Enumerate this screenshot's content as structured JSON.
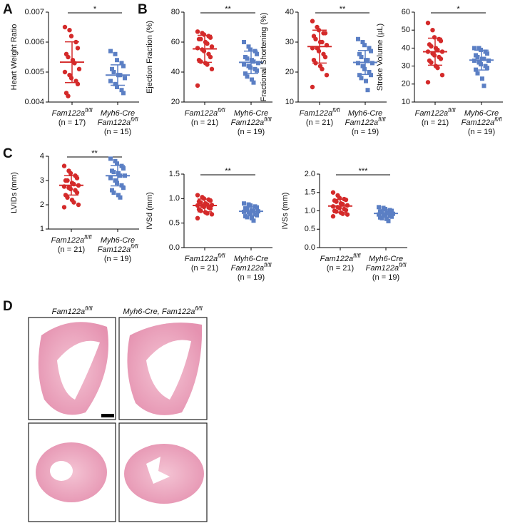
{
  "panel_labels": [
    "A",
    "B",
    "C",
    "D"
  ],
  "chart_data": [
    {
      "type": "dot",
      "ylabel": "Heart Weight Ratio",
      "ylim": [
        0.004,
        0.007
      ],
      "yticks": [
        0.004,
        0.005,
        0.006,
        0.007
      ],
      "significance": "*",
      "series": [
        {
          "label_lines": [
            {
              "text": "Fam122a",
              "sup": "fl/fl"
            }
          ],
          "n_label": "(n = 17)",
          "color": "#d42a2a",
          "marker": "circle",
          "mean": 0.00533,
          "sd": 0.00068,
          "values": [
            0.0065,
            0.0064,
            0.0062,
            0.006,
            0.0058,
            0.0056,
            0.0055,
            0.0054,
            0.0053,
            0.0051,
            0.005,
            0.0049,
            0.0048,
            0.0047,
            0.0046,
            0.0043,
            0.0042
          ]
        },
        {
          "label_lines": [
            {
              "text": "Myh6-Cre"
            },
            {
              "text": "Fam122a",
              "sup": "fl/fl"
            }
          ],
          "n_label": "(n = 15)",
          "color": "#5b7fc4",
          "marker": "square",
          "mean": 0.0049,
          "sd": 0.00034,
          "values": [
            0.0057,
            0.0056,
            0.0054,
            0.0053,
            0.0052,
            0.0051,
            0.005,
            0.0049,
            0.0049,
            0.0048,
            0.0047,
            0.0046,
            0.0045,
            0.0044,
            0.0043
          ]
        }
      ]
    },
    {
      "type": "dot",
      "ylabel": "Ejection Fraction (%)",
      "ylim": [
        20,
        80
      ],
      "yticks": [
        20,
        40,
        60,
        80
      ],
      "significance": "**",
      "series": [
        {
          "label_lines": [
            {
              "text": "Fam122a",
              "sup": "fl/fl"
            }
          ],
          "n_label": "(n = 21)",
          "color": "#d42a2a",
          "marker": "circle",
          "mean": 55.5,
          "sd": 9,
          "values": [
            67,
            66,
            65,
            64,
            63,
            62,
            62,
            60,
            59,
            57,
            56,
            55,
            54,
            52,
            50,
            48,
            47,
            46,
            45,
            42,
            31
          ]
        },
        {
          "label_lines": [
            {
              "text": "Myh6-Cre"
            },
            {
              "text": "Fam122a",
              "sup": "fl/fl"
            }
          ],
          "n_label": "(n = 19)",
          "color": "#5b7fc4",
          "marker": "square",
          "mean": 46.5,
          "sd": 7.5,
          "values": [
            60,
            57,
            55,
            54,
            52,
            50,
            49,
            48,
            47,
            46,
            45,
            44,
            43,
            42,
            41,
            39,
            37,
            35,
            33
          ]
        }
      ]
    },
    {
      "type": "dot",
      "ylabel": "Fractional Shortening (%)",
      "ylim": [
        10,
        40
      ],
      "yticks": [
        10,
        20,
        30,
        40
      ],
      "significance": "**",
      "series": [
        {
          "label_lines": [
            {
              "text": "Fam122a",
              "sup": "fl/fl"
            }
          ],
          "n_label": "(n = 21)",
          "color": "#d42a2a",
          "marker": "circle",
          "mean": 28.5,
          "sd": 5.5,
          "values": [
            37,
            35,
            34,
            33,
            33,
            32,
            31,
            30,
            30,
            29,
            28,
            28,
            27,
            26,
            25,
            24,
            23,
            22,
            21,
            19,
            15
          ]
        },
        {
          "label_lines": [
            {
              "text": "Myh6-Cre"
            },
            {
              "text": "Fam122a",
              "sup": "fl/fl"
            }
          ],
          "n_label": "(n = 19)",
          "color": "#5b7fc4",
          "marker": "square",
          "mean": 23.2,
          "sd": 4,
          "values": [
            31,
            30,
            29,
            28,
            27,
            26,
            25,
            24,
            24,
            23,
            23,
            22,
            21,
            20,
            19,
            19,
            18,
            17,
            14
          ]
        }
      ]
    },
    {
      "type": "dot",
      "ylabel": "Stroke Volume (µL)",
      "ylim": [
        10,
        60
      ],
      "yticks": [
        10,
        20,
        30,
        40,
        50,
        60
      ],
      "significance": "*",
      "series": [
        {
          "label_lines": [
            {
              "text": "Fam122a",
              "sup": "fl/fl"
            }
          ],
          "n_label": "(n = 21)",
          "color": "#d42a2a",
          "marker": "circle",
          "mean": 38,
          "sd": 7.5,
          "values": [
            54,
            50,
            46,
            45,
            44,
            42,
            41,
            40,
            39,
            38,
            38,
            37,
            36,
            35,
            34,
            33,
            32,
            30,
            29,
            25,
            21
          ]
        },
        {
          "label_lines": [
            {
              "text": "Myh6-Cre"
            },
            {
              "text": "Fam122a",
              "sup": "fl/fl"
            }
          ],
          "n_label": "(n = 19)",
          "color": "#5b7fc4",
          "marker": "square",
          "mean": 33.3,
          "sd": 5.5,
          "values": [
            40,
            40,
            39,
            38,
            37,
            36,
            35,
            34,
            34,
            33,
            33,
            32,
            31,
            30,
            29,
            28,
            26,
            23,
            19
          ]
        }
      ]
    },
    {
      "type": "dot",
      "ylabel": "LVIDs (mm)",
      "ylim": [
        1,
        4
      ],
      "yticks": [
        1,
        2,
        3,
        4
      ],
      "significance": "**",
      "series": [
        {
          "label_lines": [
            {
              "text": "Fam122a",
              "sup": "fl/fl"
            }
          ],
          "n_label": "(n = 21)",
          "color": "#d42a2a",
          "marker": "circle",
          "mean": 2.8,
          "sd": 0.4,
          "values": [
            3.6,
            3.4,
            3.3,
            3.2,
            3.1,
            3.0,
            3.0,
            2.9,
            2.85,
            2.8,
            2.75,
            2.7,
            2.65,
            2.6,
            2.5,
            2.4,
            2.3,
            2.2,
            2.1,
            2.0,
            1.9
          ]
        },
        {
          "label_lines": [
            {
              "text": "Myh6-Cre"
            },
            {
              "text": "Fam122a",
              "sup": "fl/fl"
            }
          ],
          "n_label": "(n = 19)",
          "color": "#5b7fc4",
          "marker": "square",
          "mean": 3.2,
          "sd": 0.42,
          "values": [
            3.9,
            3.8,
            3.7,
            3.6,
            3.5,
            3.4,
            3.35,
            3.3,
            3.2,
            3.2,
            3.1,
            3.0,
            2.9,
            2.8,
            2.7,
            2.6,
            2.5,
            2.4,
            2.3
          ]
        }
      ]
    },
    {
      "type": "dot",
      "ylabel": "IVSd (mm)",
      "ylim": [
        0,
        1.5
      ],
      "yticks": [
        {
          "value": 0,
          "label": "0.0"
        },
        0.5,
        {
          "value": 1,
          "label": "1.0"
        },
        1.5
      ],
      "significance": "**",
      "series": [
        {
          "label_lines": [
            {
              "text": "Fam122a",
              "sup": "fl/fl"
            }
          ],
          "n_label": "(n = 21)",
          "color": "#d42a2a",
          "marker": "circle",
          "mean": 0.86,
          "sd": 0.13,
          "values": [
            1.07,
            1.03,
            1.0,
            0.98,
            0.96,
            0.94,
            0.92,
            0.9,
            0.88,
            0.87,
            0.86,
            0.85,
            0.83,
            0.82,
            0.8,
            0.78,
            0.75,
            0.72,
            0.7,
            0.68,
            0.6
          ]
        },
        {
          "label_lines": [
            {
              "text": "Myh6-Cre"
            },
            {
              "text": "Fam122a",
              "sup": "fl/fl"
            }
          ],
          "n_label": "(n = 19)",
          "color": "#5b7fc4",
          "marker": "square",
          "mean": 0.74,
          "sd": 0.09,
          "values": [
            0.9,
            0.88,
            0.86,
            0.84,
            0.82,
            0.8,
            0.78,
            0.76,
            0.75,
            0.74,
            0.73,
            0.72,
            0.7,
            0.68,
            0.66,
            0.64,
            0.62,
            0.6,
            0.55
          ]
        }
      ]
    },
    {
      "type": "dot",
      "ylabel": "IVSs (mm)",
      "ylim": [
        0,
        2
      ],
      "yticks": [
        {
          "value": 0,
          "label": "0.0"
        },
        0.5,
        {
          "value": 1,
          "label": "1.0"
        },
        1.5,
        {
          "value": 2,
          "label": "2.0"
        }
      ],
      "significance": "***",
      "series": [
        {
          "label_lines": [
            {
              "text": "Fam122a",
              "sup": "fl/fl"
            }
          ],
          "n_label": "(n = 21)",
          "color": "#d42a2a",
          "marker": "circle",
          "mean": 1.13,
          "sd": 0.18,
          "values": [
            1.5,
            1.42,
            1.35,
            1.32,
            1.3,
            1.28,
            1.25,
            1.2,
            1.18,
            1.15,
            1.12,
            1.1,
            1.08,
            1.05,
            1.02,
            1.0,
            0.98,
            0.95,
            0.92,
            0.9,
            0.85
          ]
        },
        {
          "label_lines": [
            {
              "text": "Myh6-Cre"
            },
            {
              "text": "Fam122a",
              "sup": "fl/fl"
            }
          ],
          "n_label": "(n = 19)",
          "color": "#5b7fc4",
          "marker": "square",
          "mean": 0.93,
          "sd": 0.1,
          "values": [
            1.1,
            1.08,
            1.05,
            1.02,
            1.0,
            0.98,
            0.96,
            0.95,
            0.93,
            0.92,
            0.9,
            0.9,
            0.88,
            0.86,
            0.84,
            0.82,
            0.8,
            0.78,
            0.72
          ]
        }
      ]
    }
  ],
  "histology": {
    "column_labels": [
      {
        "text": "Fam122a",
        "sup": "fl/fl"
      },
      {
        "text": "Myh6-Cre, Fam122a",
        "sup": "fl/fl"
      }
    ]
  }
}
